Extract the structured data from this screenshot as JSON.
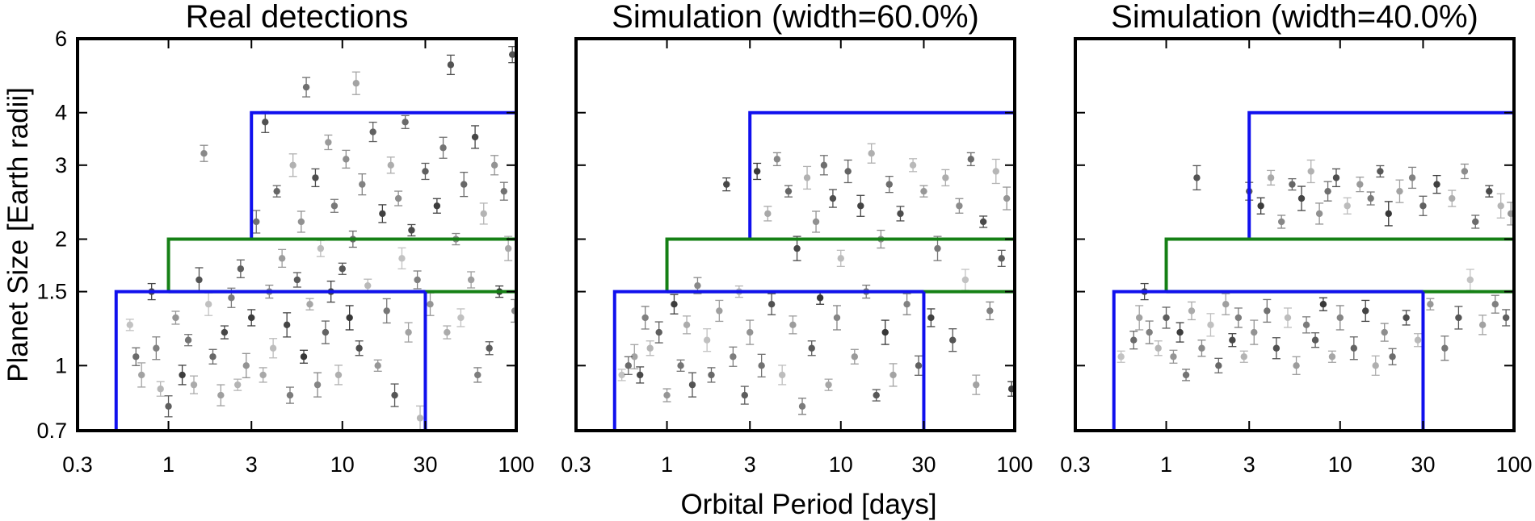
{
  "figure": {
    "xlabel": "Orbital Period [days]",
    "ylabel": "Planet Size [Earth radii]"
  },
  "chart_data": [
    {
      "type": "scatter",
      "title": "Real detections",
      "xscale": "log",
      "yscale": "log",
      "xlim": [
        0.3,
        100
      ],
      "ylim": [
        0.7,
        6
      ],
      "xticks": [
        "0.3",
        "1",
        "3",
        "10",
        "30",
        "100"
      ],
      "yticks": [
        "0.7",
        "1",
        "1.5",
        "2",
        "3",
        "4",
        "6"
      ],
      "boxes": [
        {
          "name": "super-earth box (blue)",
          "period": [
            3,
            100
          ],
          "radius": [
            2,
            4
          ],
          "color": "#1010ee"
        },
        {
          "name": "transition box (green)",
          "period": [
            1,
            100
          ],
          "radius": [
            1.5,
            2
          ],
          "color": "#158015"
        },
        {
          "name": "rocky box (blue)",
          "period": [
            0.5,
            30
          ],
          "radius": [
            0.7,
            1.5
          ],
          "color": "#1010ee"
        }
      ],
      "points": [
        [
          0.6,
          1.25
        ],
        [
          0.65,
          1.05
        ],
        [
          0.7,
          0.95
        ],
        [
          0.8,
          1.5
        ],
        [
          0.85,
          1.1
        ],
        [
          0.9,
          0.88
        ],
        [
          1.0,
          0.8
        ],
        [
          1.1,
          1.3
        ],
        [
          1.2,
          0.95
        ],
        [
          1.3,
          1.15
        ],
        [
          1.4,
          0.9
        ],
        [
          1.5,
          1.6
        ],
        [
          1.6,
          3.2
        ],
        [
          1.7,
          1.4
        ],
        [
          1.8,
          1.05
        ],
        [
          2.0,
          0.85
        ],
        [
          2.1,
          1.2
        ],
        [
          2.3,
          1.45
        ],
        [
          2.5,
          0.9
        ],
        [
          2.6,
          1.7
        ],
        [
          2.8,
          1.0
        ],
        [
          3.0,
          1.3
        ],
        [
          3.2,
          2.2
        ],
        [
          3.5,
          0.95
        ],
        [
          3.6,
          3.8
        ],
        [
          3.8,
          1.5
        ],
        [
          4.0,
          1.1
        ],
        [
          4.2,
          2.6
        ],
        [
          4.5,
          1.8
        ],
        [
          4.8,
          1.25
        ],
        [
          5.0,
          0.85
        ],
        [
          5.2,
          3.0
        ],
        [
          5.5,
          1.6
        ],
        [
          5.8,
          2.2
        ],
        [
          6.0,
          1.05
        ],
        [
          6.2,
          4.6
        ],
        [
          6.5,
          1.4
        ],
        [
          7.0,
          2.8
        ],
        [
          7.2,
          0.9
        ],
        [
          7.5,
          1.9
        ],
        [
          8.0,
          1.2
        ],
        [
          8.3,
          3.4
        ],
        [
          8.6,
          1.5
        ],
        [
          9.0,
          2.4
        ],
        [
          9.5,
          0.95
        ],
        [
          10.0,
          1.7
        ],
        [
          10.5,
          3.1
        ],
        [
          11.0,
          1.3
        ],
        [
          11.5,
          2.0
        ],
        [
          12.0,
          4.7
        ],
        [
          12.5,
          1.1
        ],
        [
          13.0,
          2.7
        ],
        [
          14.0,
          1.55
        ],
        [
          15.0,
          3.6
        ],
        [
          16.0,
          1.0
        ],
        [
          17.0,
          2.3
        ],
        [
          18.0,
          1.35
        ],
        [
          19.0,
          3.0
        ],
        [
          20.0,
          0.85
        ],
        [
          21.0,
          2.5
        ],
        [
          22.0,
          1.8
        ],
        [
          23.0,
          3.8
        ],
        [
          24.0,
          1.2
        ],
        [
          25.0,
          2.1
        ],
        [
          27.0,
          1.6
        ],
        [
          28.0,
          0.75
        ],
        [
          30.0,
          2.9
        ],
        [
          32.0,
          1.4
        ],
        [
          35.0,
          2.4
        ],
        [
          38.0,
          3.3
        ],
        [
          40.0,
          1.2
        ],
        [
          42.0,
          5.2
        ],
        [
          45.0,
          2.0
        ],
        [
          48.0,
          1.3
        ],
        [
          50.0,
          2.7
        ],
        [
          55.0,
          1.6
        ],
        [
          58.0,
          3.5
        ],
        [
          60.0,
          0.95
        ],
        [
          65.0,
          2.3
        ],
        [
          70.0,
          1.1
        ],
        [
          75.0,
          3.0
        ],
        [
          80.0,
          1.5
        ],
        [
          85.0,
          2.6
        ],
        [
          90.0,
          1.9
        ],
        [
          95.0,
          5.5
        ],
        [
          98.0,
          1.35
        ]
      ]
    },
    {
      "type": "scatter",
      "title": "Simulation (width=60.0%)",
      "xscale": "log",
      "yscale": "log",
      "xlim": [
        0.3,
        100
      ],
      "ylim": [
        0.7,
        6
      ],
      "xticks": [
        "0.3",
        "1",
        "3",
        "10",
        "30",
        "100"
      ],
      "yticks": [
        "0.7",
        "1",
        "1.5",
        "2",
        "3",
        "4",
        "6"
      ],
      "boxes": [
        {
          "name": "super-earth box (blue)",
          "period": [
            3,
            100
          ],
          "radius": [
            2,
            4
          ],
          "color": "#1010ee"
        },
        {
          "name": "transition box (green)",
          "period": [
            1,
            100
          ],
          "radius": [
            1.5,
            2
          ],
          "color": "#158015"
        },
        {
          "name": "rocky box (blue)",
          "period": [
            0.5,
            30
          ],
          "radius": [
            0.7,
            1.5
          ],
          "color": "#1010ee"
        }
      ],
      "points": [
        [
          0.55,
          0.95
        ],
        [
          0.6,
          1.0
        ],
        [
          0.65,
          1.05
        ],
        [
          0.7,
          0.95
        ],
        [
          0.75,
          1.3
        ],
        [
          0.8,
          1.1
        ],
        [
          0.9,
          1.2
        ],
        [
          1.0,
          0.85
        ],
        [
          1.1,
          1.4
        ],
        [
          1.2,
          1.0
        ],
        [
          1.3,
          1.25
        ],
        [
          1.4,
          0.9
        ],
        [
          1.5,
          1.55
        ],
        [
          1.7,
          1.15
        ],
        [
          1.8,
          0.95
        ],
        [
          2.0,
          1.35
        ],
        [
          2.2,
          2.7
        ],
        [
          2.4,
          1.05
        ],
        [
          2.6,
          1.5
        ],
        [
          2.8,
          0.85
        ],
        [
          3.0,
          1.2
        ],
        [
          3.3,
          2.9
        ],
        [
          3.5,
          1.0
        ],
        [
          3.8,
          2.3
        ],
        [
          4.0,
          1.4
        ],
        [
          4.3,
          3.1
        ],
        [
          4.6,
          0.95
        ],
        [
          5.0,
          2.6
        ],
        [
          5.3,
          1.25
        ],
        [
          5.6,
          1.9
        ],
        [
          6.0,
          0.8
        ],
        [
          6.4,
          2.8
        ],
        [
          6.8,
          1.1
        ],
        [
          7.2,
          2.2
        ],
        [
          7.6,
          1.45
        ],
        [
          8.0,
          3.0
        ],
        [
          8.5,
          0.9
        ],
        [
          9.0,
          2.5
        ],
        [
          9.5,
          1.3
        ],
        [
          10.0,
          1.8
        ],
        [
          11.0,
          2.9
        ],
        [
          12.0,
          1.05
        ],
        [
          13.0,
          2.4
        ],
        [
          14.0,
          1.5
        ],
        [
          15.0,
          3.2
        ],
        [
          16.0,
          0.85
        ],
        [
          17.0,
          2.0
        ],
        [
          18.0,
          1.2
        ],
        [
          19.0,
          2.7
        ],
        [
          20.0,
          0.95
        ],
        [
          22.0,
          2.3
        ],
        [
          24.0,
          1.4
        ],
        [
          26.0,
          3.0
        ],
        [
          28.0,
          1.0
        ],
        [
          30.0,
          2.6
        ],
        [
          33.0,
          1.3
        ],
        [
          36.0,
          1.9
        ],
        [
          40.0,
          2.8
        ],
        [
          44.0,
          1.15
        ],
        [
          48.0,
          2.4
        ],
        [
          52.0,
          1.6
        ],
        [
          56.0,
          3.1
        ],
        [
          60.0,
          0.9
        ],
        [
          66.0,
          2.2
        ],
        [
          72.0,
          1.35
        ],
        [
          78.0,
          2.9
        ],
        [
          84.0,
          1.8
        ],
        [
          90.0,
          2.5
        ],
        [
          96.0,
          0.88
        ]
      ]
    },
    {
      "type": "scatter",
      "title": "Simulation (width=40.0%)",
      "xscale": "log",
      "yscale": "log",
      "xlim": [
        0.3,
        100
      ],
      "ylim": [
        0.7,
        6
      ],
      "xticks": [
        "0.3",
        "1",
        "3",
        "10",
        "30",
        "100"
      ],
      "yticks": [
        "0.7",
        "1",
        "1.5",
        "2",
        "3",
        "4",
        "6"
      ],
      "boxes": [
        {
          "name": "super-earth box (blue)",
          "period": [
            3,
            100
          ],
          "radius": [
            2,
            4
          ],
          "color": "#1010ee"
        },
        {
          "name": "transition box (green)",
          "period": [
            1,
            100
          ],
          "radius": [
            1.5,
            2
          ],
          "color": "#158015"
        },
        {
          "name": "rocky box (blue)",
          "period": [
            0.5,
            30
          ],
          "radius": [
            0.7,
            1.5
          ],
          "color": "#1010ee"
        }
      ],
      "points": [
        [
          0.55,
          1.05
        ],
        [
          0.65,
          1.15
        ],
        [
          0.7,
          1.3
        ],
        [
          0.75,
          1.5
        ],
        [
          0.8,
          1.2
        ],
        [
          0.9,
          1.1
        ],
        [
          1.0,
          1.3
        ],
        [
          1.1,
          1.05
        ],
        [
          1.2,
          1.2
        ],
        [
          1.3,
          0.95
        ],
        [
          1.4,
          1.35
        ],
        [
          1.5,
          2.8
        ],
        [
          1.6,
          1.1
        ],
        [
          1.8,
          1.25
        ],
        [
          2.0,
          1.0
        ],
        [
          2.2,
          1.4
        ],
        [
          2.4,
          1.15
        ],
        [
          2.6,
          1.3
        ],
        [
          2.8,
          1.05
        ],
        [
          3.0,
          2.6
        ],
        [
          3.2,
          1.2
        ],
        [
          3.5,
          2.4
        ],
        [
          3.8,
          1.35
        ],
        [
          4.0,
          2.8
        ],
        [
          4.3,
          1.1
        ],
        [
          4.6,
          2.2
        ],
        [
          5.0,
          1.3
        ],
        [
          5.3,
          2.7
        ],
        [
          5.6,
          1.0
        ],
        [
          6.0,
          2.5
        ],
        [
          6.4,
          1.25
        ],
        [
          6.8,
          2.9
        ],
        [
          7.2,
          1.15
        ],
        [
          7.6,
          2.3
        ],
        [
          8.0,
          1.4
        ],
        [
          8.5,
          2.6
        ],
        [
          9.0,
          1.05
        ],
        [
          9.5,
          2.8
        ],
        [
          10.0,
          1.3
        ],
        [
          11.0,
          2.4
        ],
        [
          12.0,
          1.1
        ],
        [
          13.0,
          2.7
        ],
        [
          14.0,
          1.35
        ],
        [
          15.0,
          2.5
        ],
        [
          16.0,
          1.0
        ],
        [
          17.0,
          2.9
        ],
        [
          18.0,
          1.2
        ],
        [
          19.0,
          2.3
        ],
        [
          20.0,
          1.05
        ],
        [
          22.0,
          2.6
        ],
        [
          24.0,
          1.3
        ],
        [
          26.0,
          2.8
        ],
        [
          28.0,
          1.15
        ],
        [
          30.0,
          2.4
        ],
        [
          33.0,
          1.4
        ],
        [
          36.0,
          2.7
        ],
        [
          40.0,
          1.1
        ],
        [
          44.0,
          2.5
        ],
        [
          48.0,
          1.3
        ],
        [
          52.0,
          2.9
        ],
        [
          56.0,
          1.6
        ],
        [
          60.0,
          2.2
        ],
        [
          66.0,
          1.25
        ],
        [
          72.0,
          2.6
        ],
        [
          78.0,
          1.4
        ],
        [
          84.0,
          2.4
        ],
        [
          90.0,
          1.3
        ],
        [
          96.0,
          2.3
        ]
      ]
    }
  ]
}
